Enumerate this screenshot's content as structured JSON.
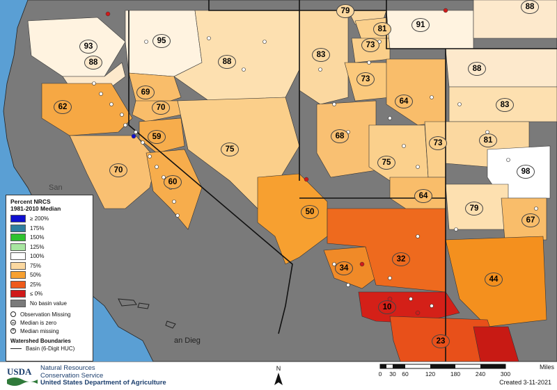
{
  "legend": {
    "title_line1": "Percent NRCS",
    "title_line2": "1981-2010 Median",
    "classes": [
      {
        "label": "≥ 200%",
        "color": "#1010d0"
      },
      {
        "label": "175%",
        "color": "#2f7fa0"
      },
      {
        "label": "150%",
        "color": "#2ec22e"
      },
      {
        "label": "125%",
        "color": "#a8e6a0"
      },
      {
        "label": "100%",
        "color": "#ffffff"
      },
      {
        "label": "75%",
        "color": "#fbd8a0"
      },
      {
        "label": "50%",
        "color": "#f7a030"
      },
      {
        "label": "25%",
        "color": "#ee5a1a"
      },
      {
        "label": "≤ 0%",
        "color": "#d01a1a"
      },
      {
        "label": "No basin value",
        "color": "#7a7a7a"
      }
    ],
    "symbols": [
      "Observation Missing",
      "Median is zero",
      "Median missing"
    ],
    "boundaries_title": "Watershed Boundaries",
    "boundary_item": "Basin (6-Digit HUC)"
  },
  "place_labels": {
    "san": "San",
    "san_diego": "an Dieg"
  },
  "basins": [
    {
      "label": "93",
      "color": "#fff3e0"
    },
    {
      "label": "95",
      "color": "#fff3e0"
    },
    {
      "label": "88",
      "color": "#fde9cc"
    },
    {
      "label": "88",
      "color": "#fde0b0"
    },
    {
      "label": "69",
      "color": "#f9bd6a"
    },
    {
      "label": "62",
      "color": "#f6a844"
    },
    {
      "label": "70",
      "color": "#f9bd6a"
    },
    {
      "label": "59",
      "color": "#f7ad4c"
    },
    {
      "label": "75",
      "color": "#fbcf8a"
    },
    {
      "label": "70",
      "color": "#f9c072"
    },
    {
      "label": "60",
      "color": "#f7ad4c"
    },
    {
      "label": "50",
      "color": "#f7a030"
    },
    {
      "label": "83",
      "color": "#fbd8a0"
    },
    {
      "label": "79",
      "color": "#fbd8a0"
    },
    {
      "label": "81",
      "color": "#fbd08c"
    },
    {
      "label": "73",
      "color": "#fbcf8a"
    },
    {
      "label": "73",
      "color": "#fbc97c"
    },
    {
      "label": "64",
      "color": "#f9bd6a"
    },
    {
      "label": "68",
      "color": "#f9c072"
    },
    {
      "label": "75",
      "color": "#fbd08c"
    },
    {
      "label": "73",
      "color": "#fbcf8a"
    },
    {
      "label": "64",
      "color": "#f9bd6a"
    },
    {
      "label": "91",
      "color": "#fff3e0"
    },
    {
      "label": "88",
      "color": "#fde9cc"
    },
    {
      "label": "88",
      "color": "#fde9cc"
    },
    {
      "label": "83",
      "color": "#fde0b0"
    },
    {
      "label": "81",
      "color": "#fbd8a0"
    },
    {
      "label": "98",
      "color": "#ffffff"
    },
    {
      "label": "79",
      "color": "#fde0b0"
    },
    {
      "label": "67",
      "color": "#f9bd6a"
    },
    {
      "label": "34",
      "color": "#f08a28"
    },
    {
      "label": "32",
      "color": "#ee6a1e"
    },
    {
      "label": "44",
      "color": "#f4901e"
    },
    {
      "label": "10",
      "color": "#d42018"
    },
    {
      "label": "23",
      "color": "#e8501a"
    }
  ],
  "footer": {
    "usda": "USDA",
    "agency_line1": "Natural Resources",
    "agency_line2": "Conservation Service",
    "department": "United States Department of Agriculture",
    "north": "N",
    "scale_unit": "Miles",
    "scale_ticks": [
      "0",
      "30",
      "60",
      "120",
      "180",
      "240",
      "300"
    ],
    "created": "Created 3-11-2021"
  }
}
